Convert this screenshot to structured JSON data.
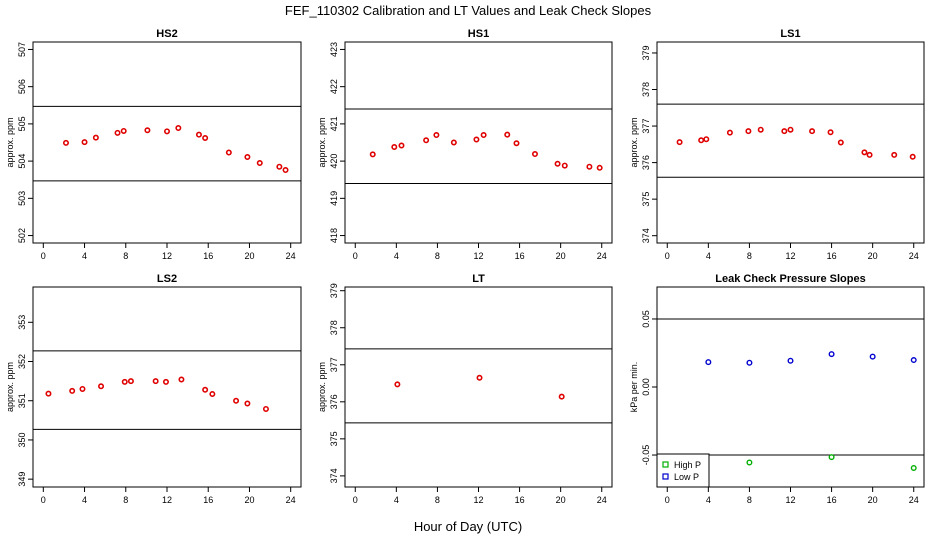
{
  "figure": {
    "title": "FEF_110302  Calibration and LT Values and Leak Check Slopes",
    "xlabel": "Hour of Day (UTC)"
  },
  "colors": {
    "red": "#e00000",
    "green": "#00b000",
    "blue": "#0000d0",
    "line": "#000000"
  },
  "chart_data": [
    {
      "type": "scatter",
      "title": "HS2",
      "ylabel": "approx. ppm",
      "xlim": [
        -1,
        25
      ],
      "ylim": [
        501.8,
        507.2
      ],
      "xticks": [
        0,
        4,
        8,
        12,
        16,
        20,
        24
      ],
      "yticks": [
        502,
        503,
        504,
        505,
        506,
        507
      ],
      "hlines": [
        505.47,
        503.47
      ],
      "series": [
        {
          "color": "red",
          "x": [
            2.2,
            4,
            5.1,
            7.2,
            7.8,
            10.1,
            12,
            13.1,
            15.1,
            15.7,
            18,
            19.8,
            21,
            22.9,
            23.5
          ],
          "y": [
            504.49,
            504.51,
            504.63,
            504.76,
            504.81,
            504.83,
            504.8,
            504.89,
            504.71,
            504.62,
            504.23,
            504.11,
            503.95,
            503.85,
            503.76
          ]
        }
      ]
    },
    {
      "type": "scatter",
      "title": "HS1",
      "ylabel": "approx. ppm",
      "xlim": [
        -1,
        25
      ],
      "ylim": [
        417.8,
        423.2
      ],
      "xticks": [
        0,
        4,
        8,
        12,
        16,
        20,
        24
      ],
      "yticks": [
        418,
        419,
        420,
        421,
        422,
        423
      ],
      "hlines": [
        421.4,
        419.4
      ],
      "series": [
        {
          "color": "red",
          "x": [
            1.7,
            3.8,
            4.5,
            6.9,
            7.9,
            9.6,
            11.8,
            12.5,
            14.8,
            15.7,
            17.5,
            19.7,
            20.4,
            22.8,
            23.8
          ],
          "y": [
            420.18,
            420.38,
            420.42,
            420.56,
            420.7,
            420.5,
            420.58,
            420.7,
            420.71,
            420.48,
            420.19,
            419.93,
            419.88,
            419.85,
            419.82
          ]
        }
      ]
    },
    {
      "type": "scatter",
      "title": "LS1",
      "ylabel": "approx. ppm",
      "xlim": [
        -1,
        25
      ],
      "ylim": [
        373.8,
        379.3
      ],
      "xticks": [
        0,
        4,
        8,
        12,
        16,
        20,
        24
      ],
      "yticks": [
        374,
        375,
        376,
        377,
        378,
        379
      ],
      "hlines": [
        377.6,
        375.6
      ],
      "series": [
        {
          "color": "red",
          "x": [
            1.2,
            3.3,
            3.8,
            6.1,
            7.9,
            9.1,
            11.4,
            12,
            14.1,
            15.9,
            16.9,
            19.2,
            19.7,
            22.1,
            23.9
          ],
          "y": [
            376.56,
            376.61,
            376.64,
            376.82,
            376.86,
            376.9,
            376.86,
            376.9,
            376.86,
            376.83,
            376.55,
            376.28,
            376.21,
            376.21,
            376.16
          ]
        }
      ]
    },
    {
      "type": "scatter",
      "title": "LS2",
      "ylabel": "approx. ppm",
      "xlim": [
        -1,
        25
      ],
      "ylim": [
        348.8,
        353.9
      ],
      "xticks": [
        0,
        4,
        8,
        12,
        16,
        20,
        24
      ],
      "yticks": [
        349,
        350,
        351,
        352,
        353
      ],
      "hlines": [
        352.27,
        350.27
      ],
      "series": [
        {
          "color": "red",
          "x": [
            0.5,
            2.8,
            3.8,
            5.6,
            7.9,
            8.5,
            10.9,
            11.9,
            13.4,
            15.7,
            16.4,
            18.7,
            19.8,
            21.6
          ],
          "y": [
            351.18,
            351.25,
            351.3,
            351.37,
            351.48,
            351.5,
            351.5,
            351.48,
            351.54,
            351.28,
            351.17,
            351,
            350.93,
            350.79
          ]
        }
      ]
    },
    {
      "type": "scatter",
      "title": "LT",
      "ylabel": "approx. ppm",
      "xlim": [
        -1,
        25
      ],
      "ylim": [
        373.7,
        379.1
      ],
      "xticks": [
        0,
        4,
        8,
        12,
        16,
        20,
        24
      ],
      "yticks": [
        374,
        375,
        376,
        377,
        378,
        379
      ],
      "hlines": [
        377.43,
        375.43
      ],
      "series": [
        {
          "color": "red",
          "x": [
            4.1,
            12.1,
            20.1
          ],
          "y": [
            376.47,
            376.65,
            376.14
          ]
        }
      ]
    },
    {
      "type": "scatter",
      "title": "Leak Check Pressure Slopes",
      "ylabel": "kPa per min.",
      "xlim": [
        -1,
        25
      ],
      "ylim": [
        -0.0735,
        0.0735
      ],
      "xticks": [
        0,
        4,
        8,
        12,
        16,
        20,
        24
      ],
      "yticks": [
        -0.05,
        0,
        0.05
      ],
      "ytick_labels": [
        "-0.05",
        "0.00",
        "0.05"
      ],
      "hlines": [
        0.05,
        -0.05
      ],
      "legend": {
        "position": "bottom-left",
        "entries": [
          "High P",
          "Low P"
        ]
      },
      "series": [
        {
          "name": "High P",
          "color": "green",
          "x": [
            8,
            16,
            24
          ],
          "y": [
            -0.0555,
            -0.0515,
            -0.0595
          ]
        },
        {
          "name": "Low P",
          "color": "blue",
          "x": [
            4,
            8,
            12,
            16,
            20,
            24
          ],
          "y": [
            0.0183,
            0.0178,
            0.0193,
            0.0242,
            0.0223,
            0.0198
          ]
        }
      ]
    }
  ]
}
